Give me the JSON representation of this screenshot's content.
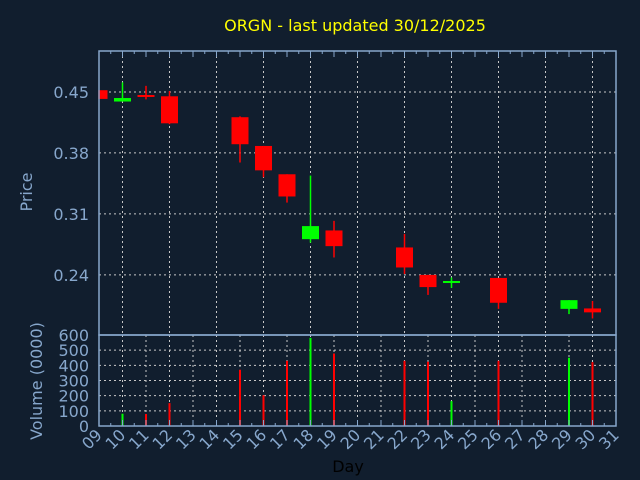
{
  "chart_data": {
    "type": "candlestick",
    "title": "ORGN - last updated 30/12/2025",
    "xlabel": "Day",
    "ylabel_price": "Price",
    "ylabel_volume": "Volume (0000)",
    "x_tick_labels": [
      "09",
      "10",
      "11",
      "12",
      "13",
      "14",
      "15",
      "16",
      "17",
      "18",
      "19",
      "20",
      "21",
      "22",
      "23",
      "24",
      "25",
      "26",
      "27",
      "28",
      "29",
      "30",
      "31"
    ],
    "price_ticks": [
      "0.45",
      "0.38",
      "0.31",
      "0.24"
    ],
    "volume_ticks": [
      "0",
      "100",
      "200",
      "300",
      "400",
      "500",
      "600"
    ],
    "price_ylim": [
      0.171,
      0.497
    ],
    "volume_ylim": [
      0,
      600
    ],
    "grid": true,
    "colors": {
      "up": "#00ff00",
      "down": "#ff0000",
      "background": "#111e2e",
      "axis": "#87a7cc",
      "title": "#ffff00"
    },
    "candles": [
      {
        "day": 9,
        "open": 0.452,
        "high": 0.452,
        "low": 0.442,
        "close": 0.442,
        "volume": null
      },
      {
        "day": 10,
        "open": 0.439,
        "high": 0.461,
        "low": 0.439,
        "close": 0.443,
        "volume": 81
      },
      {
        "day": 11,
        "open": 0.4465,
        "high": 0.457,
        "low": 0.4415,
        "close": 0.4445,
        "volume": 79
      },
      {
        "day": 12,
        "open": 0.445,
        "high": 0.451,
        "low": 0.413,
        "close": 0.414,
        "volume": 151
      },
      {
        "day": 15,
        "open": 0.421,
        "high": 0.422,
        "low": 0.369,
        "close": 0.39,
        "volume": 371
      },
      {
        "day": 16,
        "open": 0.388,
        "high": 0.388,
        "low": 0.352,
        "close": 0.36,
        "volume": 203
      },
      {
        "day": 17,
        "open": 0.3555,
        "high": 0.3555,
        "low": 0.323,
        "close": 0.33,
        "volume": 430
      },
      {
        "day": 18,
        "open": 0.281,
        "high": 0.354,
        "low": 0.277,
        "close": 0.296,
        "volume": 581
      },
      {
        "day": 19,
        "open": 0.291,
        "high": 0.302,
        "low": 0.26,
        "close": 0.273,
        "volume": 478
      },
      {
        "day": 22,
        "open": 0.2715,
        "high": 0.287,
        "low": 0.241,
        "close": 0.2485,
        "volume": 430
      },
      {
        "day": 23,
        "open": 0.24,
        "high": 0.24,
        "low": 0.217,
        "close": 0.226,
        "volume": 424
      },
      {
        "day": 24,
        "open": 0.231,
        "high": 0.237,
        "low": 0.225,
        "close": 0.233,
        "volume": 164
      },
      {
        "day": 26,
        "open": 0.2365,
        "high": 0.2365,
        "low": 0.201,
        "close": 0.208,
        "volume": 430
      },
      {
        "day": 29,
        "open": 0.201,
        "high": 0.211,
        "low": 0.195,
        "close": 0.211,
        "volume": 450
      },
      {
        "day": 30,
        "open": 0.2015,
        "high": 0.21,
        "low": 0.19,
        "close": 0.197,
        "volume": 421
      }
    ]
  }
}
